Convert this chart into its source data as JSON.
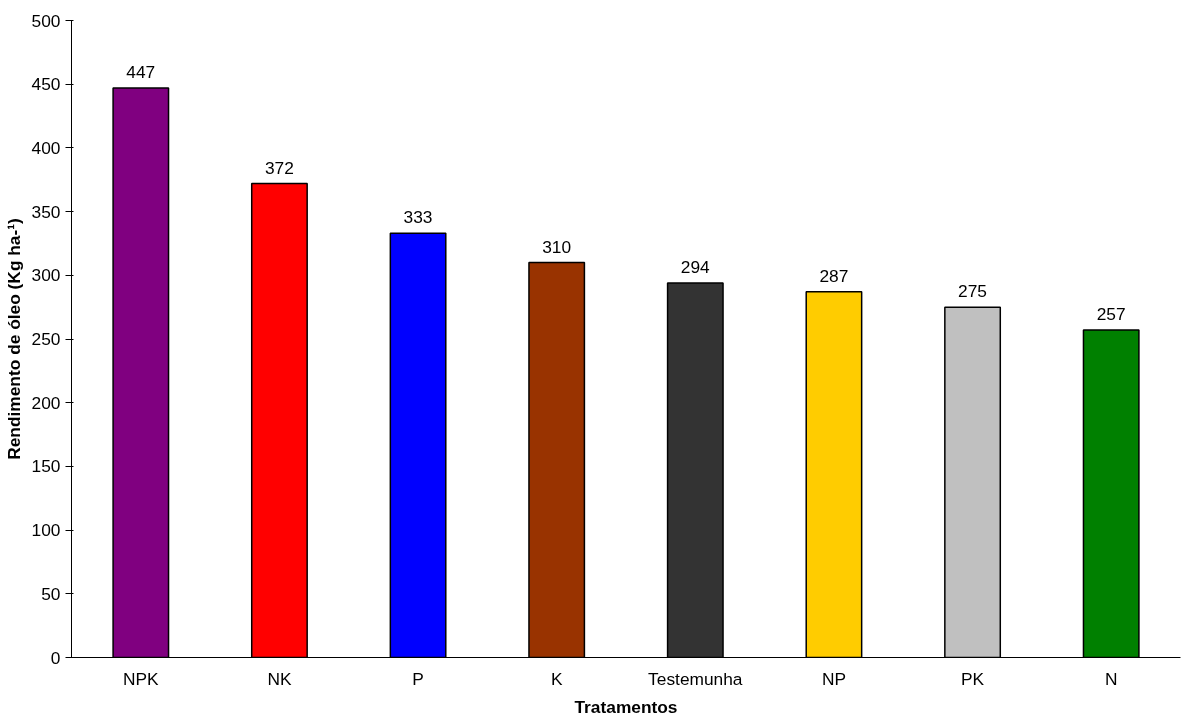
{
  "chart_data": {
    "type": "bar",
    "xlabel": "Tratamentos",
    "ylabel": "Rendimento de óleo (Kg ha-¹)",
    "categories": [
      "NPK",
      "NK",
      "P",
      "K",
      "Testemunha",
      "NP",
      "PK",
      "N"
    ],
    "values": [
      447,
      372,
      333,
      310,
      294,
      287,
      275,
      257
    ],
    "colors": [
      "#800080",
      "#ff0000",
      "#0000ff",
      "#993300",
      "#333333",
      "#ffcc00",
      "#c0c0c0",
      "#008000"
    ],
    "ylim": [
      0,
      500
    ],
    "yticks": [
      0,
      50,
      100,
      150,
      200,
      250,
      300,
      350,
      400,
      450,
      500
    ],
    "grid": false,
    "data_labels": true
  }
}
